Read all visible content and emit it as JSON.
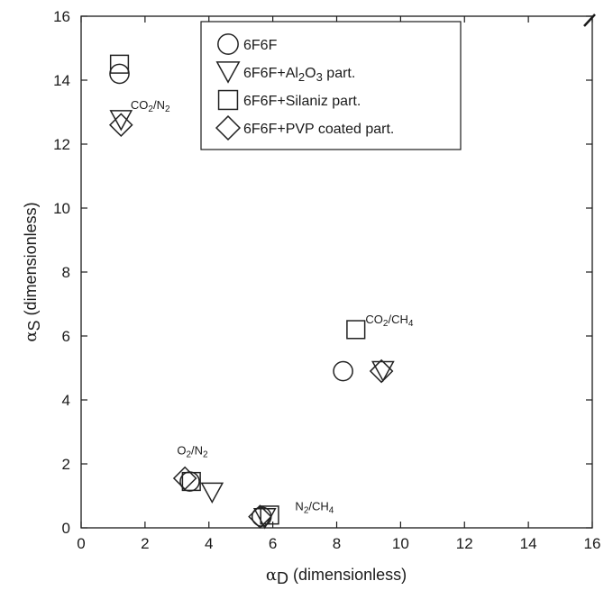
{
  "chart_data": {
    "type": "scatter",
    "xlabel": {
      "symbol": "α",
      "sub": "D",
      "rest": " (dimensionless)"
    },
    "ylabel": {
      "symbol": "α",
      "sub": "S",
      "rest": " (dimensionless)"
    },
    "xlim": [
      0,
      16
    ],
    "ylim": [
      0,
      16
    ],
    "xticks": [
      "0",
      "2",
      "4",
      "6",
      "8",
      "10",
      "12",
      "14",
      "16"
    ],
    "yticks": [
      "0",
      "2",
      "4",
      "6",
      "8",
      "10",
      "12",
      "14",
      "16"
    ],
    "legend_position": "top-center",
    "series": [
      {
        "name": "6F6F",
        "marker": "circle",
        "points": [
          [
            1.2,
            14.2
          ],
          [
            8.2,
            4.9
          ],
          [
            3.4,
            1.45
          ],
          [
            5.65,
            0.35
          ]
        ]
      },
      {
        "name": "6F6F+Al2O3 part.",
        "marker": "triangle-down",
        "points": [
          [
            1.25,
            12.75
          ],
          [
            9.45,
            4.9
          ],
          [
            4.1,
            1.1
          ],
          [
            5.75,
            0.3
          ]
        ]
      },
      {
        "name": "6F6F+Silaniz part.",
        "marker": "square",
        "points": [
          [
            1.2,
            14.5
          ],
          [
            8.6,
            6.2
          ],
          [
            3.45,
            1.45
          ],
          [
            5.9,
            0.4
          ]
        ]
      },
      {
        "name": "6F6F+PVP coated part.",
        "marker": "diamond",
        "points": [
          [
            1.25,
            12.6
          ],
          [
            9.4,
            4.9
          ],
          [
            3.25,
            1.55
          ],
          [
            5.6,
            0.35
          ]
        ]
      }
    ],
    "legend_labels": [
      {
        "main": "6F6F"
      },
      {
        "main": "6F6F+Al",
        "sub1": "2",
        "mid": "O",
        "sub2": "3",
        "tail": " part."
      },
      {
        "main": "6F6F+Silaniz part."
      },
      {
        "main": "6F6F+PVP coated part."
      }
    ],
    "annotations": [
      {
        "id": "co2-n2",
        "a": "CO",
        "a_sub": "2",
        "b": "/N",
        "b_sub": "2",
        "x": 1.55,
        "y": 13.1
      },
      {
        "id": "co2-ch4",
        "a": "CO",
        "a_sub": "2",
        "b": "/CH",
        "b_sub": "4",
        "x": 8.9,
        "y": 6.4
      },
      {
        "id": "o2-n2",
        "a": "O",
        "a_sub": "2",
        "b": "/N",
        "b_sub": "2",
        "x": 3.0,
        "y": 2.3
      },
      {
        "id": "n2-ch4",
        "a": "N",
        "a_sub": "2",
        "b": "/CH",
        "b_sub": "4",
        "x": 6.7,
        "y": 0.55
      }
    ]
  }
}
